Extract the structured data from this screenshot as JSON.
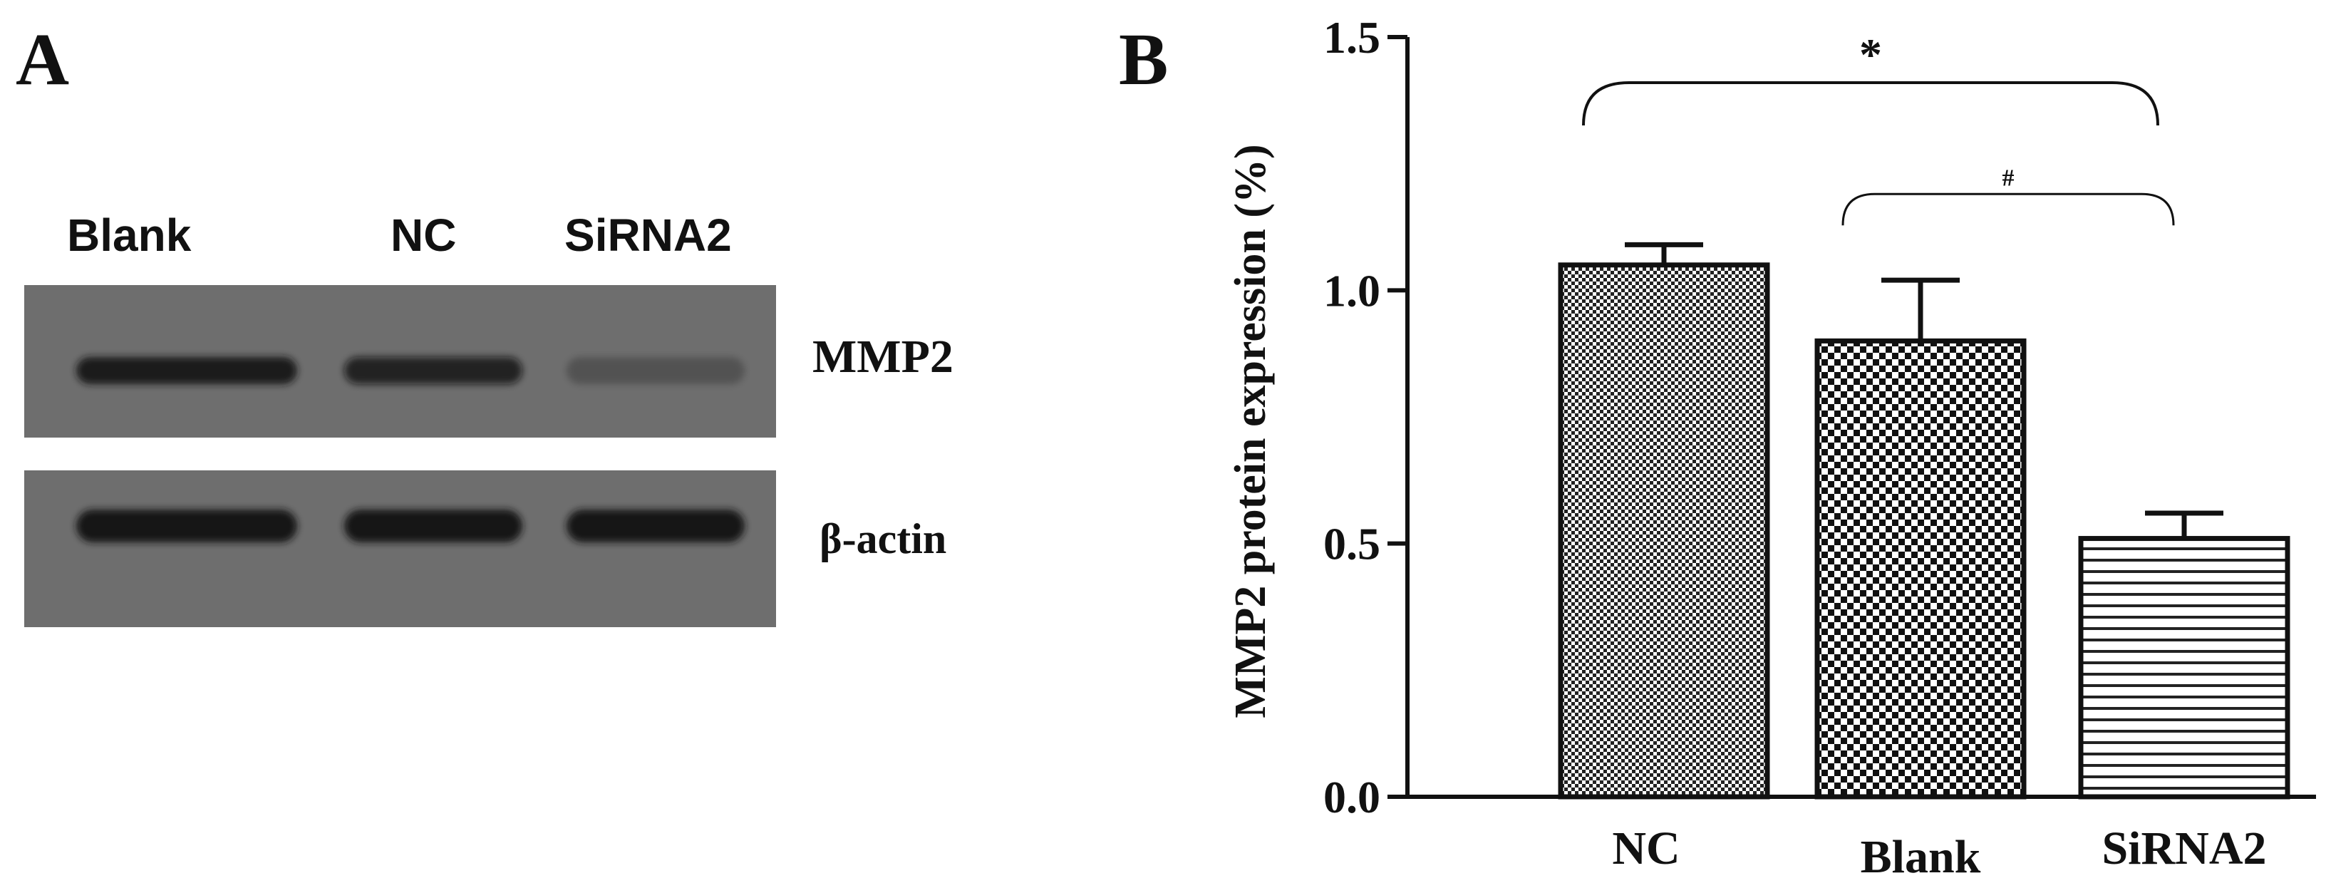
{
  "panel_a": {
    "letter": "A",
    "lanes": [
      "Blank",
      "NC",
      "SiRNA2"
    ],
    "blots": [
      {
        "label": "MMP2",
        "band_intensity": [
          0.95,
          0.8,
          0.25
        ]
      },
      {
        "label": "β-actin",
        "band_intensity": [
          1.0,
          1.0,
          1.0
        ]
      }
    ]
  },
  "panel_b": {
    "letter": "B"
  },
  "colors": {
    "blot_background": "#6e6e6e",
    "band": "#141414",
    "ink": "#111111",
    "background": "#ffffff"
  },
  "chart_data": {
    "type": "bar",
    "categories": [
      "NC",
      "Blank",
      "SiRNA2"
    ],
    "values": [
      1.05,
      0.9,
      0.51
    ],
    "errors": [
      0.04,
      0.12,
      0.05
    ],
    "patterns": [
      "dense-check",
      "coarse-check",
      "horizontal-lines"
    ],
    "title": "",
    "xlabel": "",
    "ylabel": "MMP2 protein expression (%)",
    "ylim": [
      0,
      1.5
    ],
    "yticks": [
      "0.0",
      "0.5",
      "1.0",
      "1.5"
    ],
    "ytick_values": [
      0,
      0.5,
      1.0,
      1.5
    ],
    "grid": false,
    "legend": "none",
    "annotations": [
      {
        "text": "*",
        "from": "NC",
        "to": "SiRNA2",
        "level": 1.41
      },
      {
        "text": "#",
        "from": "Blank",
        "to": "SiRNA2",
        "level": 1.19
      }
    ]
  }
}
